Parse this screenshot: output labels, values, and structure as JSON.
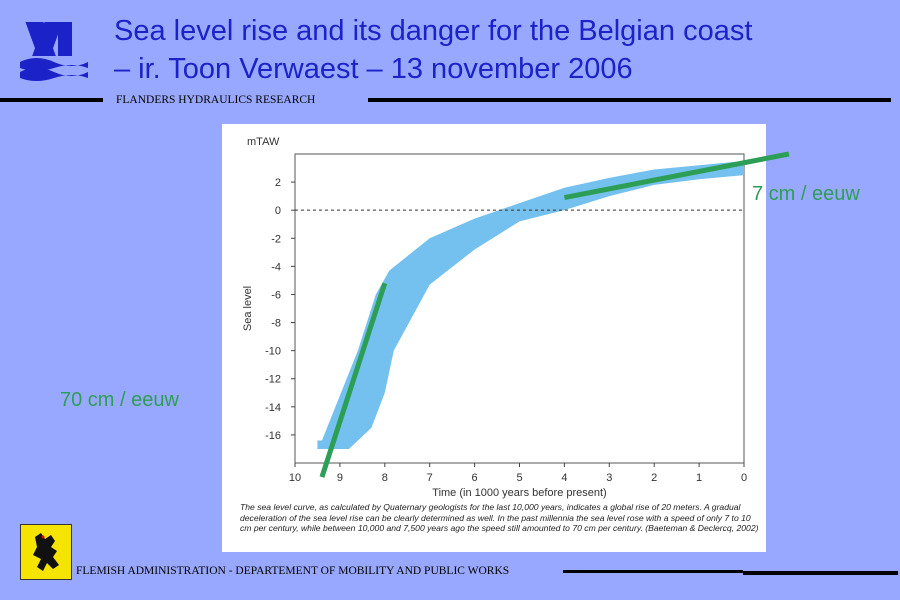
{
  "slide": {
    "title_line1": "Sea level rise and its danger for the Belgian coast",
    "title_line2": "– ir. Toon Verwaest – 13 november 2006",
    "organization": "FLANDERS HYDRAULICS RESEARCH",
    "footer": "FLEMISH ADMINISTRATION - DEPARTEMENT OF MOBILITY AND PUBLIC WORKS",
    "annotation_recent": "7 cm / eeuw",
    "annotation_early": "70 cm / eeuw"
  },
  "colors": {
    "background": "#99a8ff",
    "title": "#1a22c8",
    "band": "#74c0ef",
    "trend": "#2d9e55",
    "flag": "#f5e400"
  },
  "chart_data": {
    "type": "area",
    "unit_label": "mTAW",
    "ylabel": "Sea level",
    "xlabel": "Time (in 1000 years before present)",
    "x_reversed": true,
    "xlim": [
      10,
      0
    ],
    "ylim": [
      -18,
      4
    ],
    "x_ticks": [
      "10",
      "9",
      "8",
      "7",
      "6",
      "5",
      "4",
      "3",
      "2",
      "1",
      "0"
    ],
    "y_ticks": [
      "2",
      "0",
      "-2",
      "-4",
      "-6",
      "-8",
      "-10",
      "-12",
      "-14",
      "-16"
    ],
    "reference_line": 0,
    "band_upper": [
      {
        "x": 9.4,
        "y": -16.4
      },
      {
        "x": 9.2,
        "y": -14.8
      },
      {
        "x": 8.6,
        "y": -10.0
      },
      {
        "x": 8.2,
        "y": -6.0
      },
      {
        "x": 7.9,
        "y": -4.3
      },
      {
        "x": 7.0,
        "y": -2.0
      },
      {
        "x": 6.0,
        "y": -0.6
      },
      {
        "x": 5.0,
        "y": 0.5
      },
      {
        "x": 4.0,
        "y": 1.6
      },
      {
        "x": 3.0,
        "y": 2.3
      },
      {
        "x": 2.0,
        "y": 2.9
      },
      {
        "x": 1.0,
        "y": 3.2
      },
      {
        "x": 0.0,
        "y": 3.5
      }
    ],
    "band_lower": [
      {
        "x": 0.0,
        "y": 2.5
      },
      {
        "x": 1.0,
        "y": 2.2
      },
      {
        "x": 2.0,
        "y": 1.8
      },
      {
        "x": 3.0,
        "y": 1.0
      },
      {
        "x": 4.0,
        "y": 0.0
      },
      {
        "x": 5.0,
        "y": -0.8
      },
      {
        "x": 6.0,
        "y": -2.8
      },
      {
        "x": 7.0,
        "y": -5.3
      },
      {
        "x": 7.8,
        "y": -10.0
      },
      {
        "x": 8.0,
        "y": -13.0
      },
      {
        "x": 8.3,
        "y": -15.5
      },
      {
        "x": 8.8,
        "y": -17.0
      },
      {
        "x": 9.5,
        "y": -17.0
      },
      {
        "x": 9.5,
        "y": -16.4
      }
    ],
    "trend_lines": [
      {
        "x1": 4.0,
        "y1": 0.9,
        "x2": -1.0,
        "y2": 4.0
      },
      {
        "x1": 8.0,
        "y1": -5.2,
        "x2": 9.4,
        "y2": -19.0
      }
    ],
    "caption": "The sea level curve, as calculated by Quaternary geologists for the last 10,000 years, indicates a global rise of 20 meters. A gradual deceleration of the sea level rise can be clearly determined as well. In the past millennia the sea level rose with a speed of only 7 to 10 cm per century, while between 10,000 and 7,500 years ago the speed still amounted to 70 cm per century. (Baeteman & Declercq, 2002)"
  }
}
